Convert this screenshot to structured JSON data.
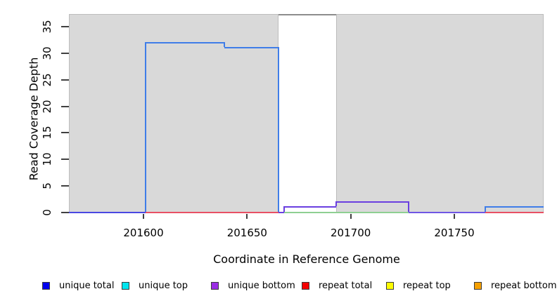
{
  "chart_data": {
    "type": "line",
    "subtype": "step-coverage",
    "title": "",
    "xlabel": "Coordinate in Reference Genome",
    "ylabel": "Read Coverage Depth",
    "xlim": [
      201564,
      201793
    ],
    "ylim": [
      0,
      37.4
    ],
    "grid": false,
    "xticks": [
      201600,
      201650,
      201700,
      201750
    ],
    "yticks": [
      0,
      5,
      10,
      15,
      20,
      25,
      30,
      35
    ],
    "shaded_regions": [
      {
        "from": 201564,
        "to": 201665,
        "fill": "#d9d9d9"
      },
      {
        "from": 201693,
        "to": 201793,
        "fill": "#d9d9d9"
      }
    ],
    "unshaded_gap": {
      "from": 201665,
      "to": 201693
    },
    "coverage_steps": [
      {
        "from": 201564,
        "to": 201600,
        "depth": 0
      },
      {
        "from": 201601,
        "to": 201639,
        "depth": 32
      },
      {
        "from": 201640,
        "to": 201665,
        "depth": 31
      },
      {
        "from": 201665,
        "to": 201668,
        "depth": 0
      },
      {
        "from": 201668,
        "to": 201693,
        "depth": 1
      },
      {
        "from": 201693,
        "to": 201728,
        "depth": 2
      },
      {
        "from": 201728,
        "to": 201765,
        "depth": 0
      },
      {
        "from": 201765,
        "to": 201793,
        "depth": 1
      }
    ],
    "segments": [
      {
        "name": "repeat-zero-left",
        "x1": 201601,
        "x2": 201665,
        "y": 0,
        "color": "#e85064"
      },
      {
        "name": "repeat-zero-right",
        "x1": 201765,
        "x2": 201793,
        "y": 0,
        "color": "#e85064"
      },
      {
        "name": "green-zero",
        "x1": 201668,
        "x2": 201728,
        "y": 0,
        "color": "#8ecf92"
      },
      {
        "name": "purple-zero-gap",
        "x1": 201665,
        "x2": 201668,
        "y": 0,
        "color": "#6a3fe0"
      },
      {
        "name": "purple-zero-mid",
        "x1": 201728,
        "x2": 201765,
        "y": 0,
        "color": "#6f56e4"
      },
      {
        "name": "purple-level-1",
        "x1": 201668,
        "x2": 201693,
        "y": 1,
        "color": "#6a3fe0"
      },
      {
        "name": "purple-level-2",
        "x1": 201693,
        "x2": 201728,
        "y": 2,
        "color": "#6a3fe0"
      },
      {
        "name": "blue-zero-left",
        "x1": 201564,
        "x2": 201601,
        "y": 0,
        "color": "#4a48e2"
      },
      {
        "name": "blue-level-32",
        "x1": 201601,
        "x2": 201639,
        "y": 32,
        "color": "#3f7de8"
      },
      {
        "name": "blue-level-31",
        "x1": 201639,
        "x2": 201665,
        "y": 31,
        "color": "#3f7de8"
      },
      {
        "name": "blue-level-1-right",
        "x1": 201765,
        "x2": 201793,
        "y": 1,
        "color": "#3f7de8"
      }
    ],
    "verticals": [
      {
        "x": 201601,
        "y1": 0,
        "y2": 32,
        "color": "#3f7de8"
      },
      {
        "x": 201639,
        "y1": 31,
        "y2": 32,
        "color": "#3f7de8"
      },
      {
        "x": 201665,
        "y1": 0,
        "y2": 31,
        "color": "#3f7de8"
      },
      {
        "x": 201668,
        "y1": 0,
        "y2": 1,
        "color": "#6a3fe0"
      },
      {
        "x": 201693,
        "y1": 1,
        "y2": 2,
        "color": "#6a3fe0"
      },
      {
        "x": 201728,
        "y1": 0,
        "y2": 2,
        "color": "#6a3fe0"
      },
      {
        "x": 201765,
        "y1": 0,
        "y2": 1,
        "color": "#3f7de8"
      }
    ],
    "legend": {
      "position": "bottom",
      "items": [
        {
          "label": "unique total",
          "color": "#0000ee"
        },
        {
          "label": "unique top",
          "color": "#00e5ee"
        },
        {
          "label": "unique bottom",
          "color": "#9a2de4"
        },
        {
          "label": "repeat total",
          "color": "#f40000"
        },
        {
          "label": "repeat top",
          "color": "#fcfc00"
        },
        {
          "label": "repeat bottom",
          "color": "#f5a000"
        }
      ]
    },
    "colors": {
      "shaded_region_fill": "#d9d9d9",
      "shaded_region_border": "#bcbcbc",
      "plot_box_line": "#8c8c8c",
      "tick": "#404040"
    }
  }
}
